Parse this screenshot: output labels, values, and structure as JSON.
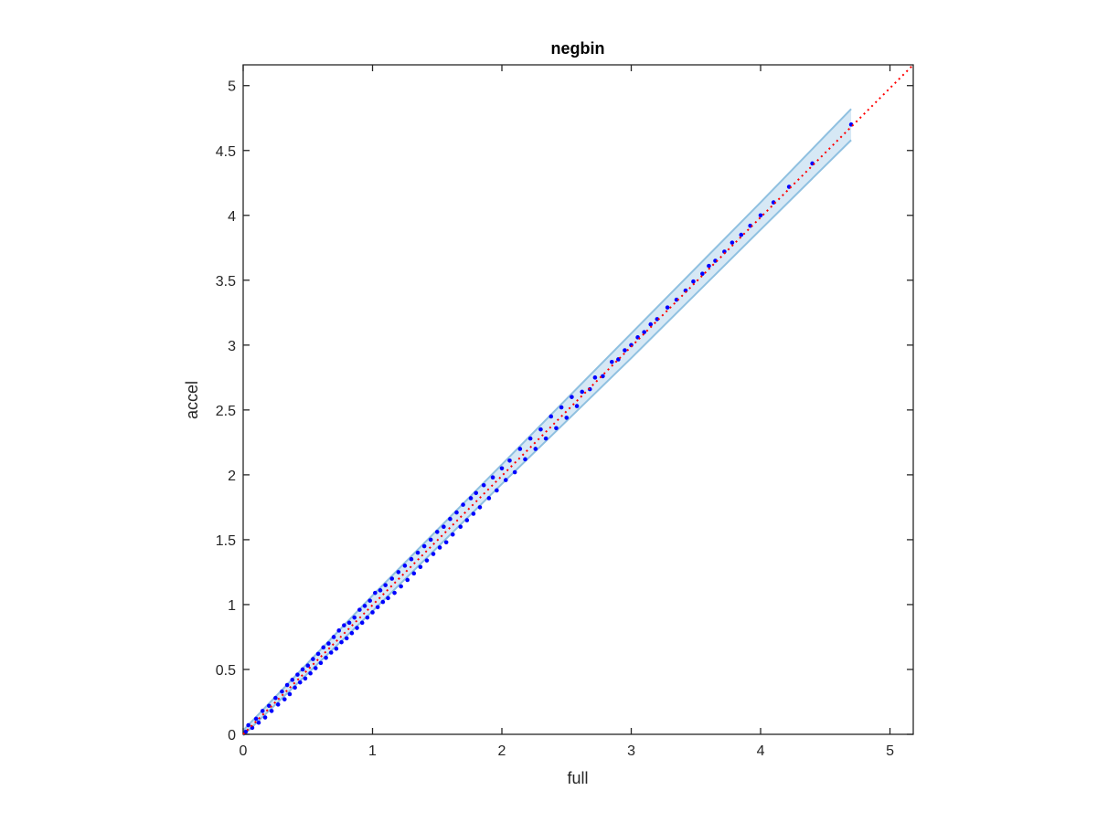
{
  "chart_data": {
    "type": "scatter",
    "title": "negbin",
    "xlabel": "full",
    "ylabel": "accel",
    "xlim": [
      0,
      5.18
    ],
    "ylim": [
      0,
      5.16
    ],
    "xticks": [
      "0",
      "1",
      "2",
      "3",
      "4",
      "5"
    ],
    "yticks": [
      "0",
      "0.5",
      "1",
      "1.5",
      "2",
      "2.5",
      "3",
      "3.5",
      "4",
      "4.5",
      "5"
    ],
    "grid": false,
    "colors": {
      "points": "#0000ff",
      "identity_line": "#ff0000",
      "band_fill": "#d6e8f5",
      "band_edge": "#8fc0e0"
    },
    "identity_line": {
      "style": "dotted",
      "from": [
        0,
        0
      ],
      "to": [
        5.18,
        5.18
      ]
    },
    "band": {
      "x": [
        0,
        1,
        2,
        3,
        4,
        4.7
      ],
      "lower": [
        -0.01,
        0.95,
        1.93,
        2.9,
        3.89,
        4.58
      ],
      "upper": [
        0.03,
        1.07,
        2.08,
        3.09,
        4.1,
        4.82
      ]
    },
    "points": [
      [
        0.02,
        0.02
      ],
      [
        0.04,
        0.07
      ],
      [
        0.07,
        0.05
      ],
      [
        0.1,
        0.12
      ],
      [
        0.12,
        0.09
      ],
      [
        0.15,
        0.18
      ],
      [
        0.17,
        0.13
      ],
      [
        0.2,
        0.22
      ],
      [
        0.22,
        0.18
      ],
      [
        0.25,
        0.28
      ],
      [
        0.27,
        0.23
      ],
      [
        0.3,
        0.33
      ],
      [
        0.32,
        0.27
      ],
      [
        0.34,
        0.38
      ],
      [
        0.36,
        0.31
      ],
      [
        0.38,
        0.42
      ],
      [
        0.4,
        0.36
      ],
      [
        0.42,
        0.46
      ],
      [
        0.44,
        0.4
      ],
      [
        0.46,
        0.5
      ],
      [
        0.48,
        0.43
      ],
      [
        0.5,
        0.53
      ],
      [
        0.52,
        0.47
      ],
      [
        0.54,
        0.58
      ],
      [
        0.56,
        0.51
      ],
      [
        0.58,
        0.62
      ],
      [
        0.6,
        0.55
      ],
      [
        0.62,
        0.67
      ],
      [
        0.64,
        0.59
      ],
      [
        0.66,
        0.7
      ],
      [
        0.68,
        0.63
      ],
      [
        0.7,
        0.75
      ],
      [
        0.72,
        0.66
      ],
      [
        0.74,
        0.8
      ],
      [
        0.76,
        0.71
      ],
      [
        0.78,
        0.84
      ],
      [
        0.8,
        0.74
      ],
      [
        0.82,
        0.86
      ],
      [
        0.84,
        0.78
      ],
      [
        0.86,
        0.9
      ],
      [
        0.88,
        0.82
      ],
      [
        0.9,
        0.96
      ],
      [
        0.92,
        0.86
      ],
      [
        0.94,
        0.99
      ],
      [
        0.96,
        0.9
      ],
      [
        0.98,
        1.03
      ],
      [
        1.0,
        0.94
      ],
      [
        1.02,
        1.09
      ],
      [
        1.04,
        0.98
      ],
      [
        1.06,
        1.11
      ],
      [
        1.08,
        1.02
      ],
      [
        1.1,
        1.15
      ],
      [
        1.12,
        1.05
      ],
      [
        1.15,
        1.2
      ],
      [
        1.17,
        1.09
      ],
      [
        1.2,
        1.25
      ],
      [
        1.22,
        1.14
      ],
      [
        1.25,
        1.3
      ],
      [
        1.27,
        1.19
      ],
      [
        1.3,
        1.35
      ],
      [
        1.32,
        1.24
      ],
      [
        1.35,
        1.4
      ],
      [
        1.37,
        1.29
      ],
      [
        1.4,
        1.45
      ],
      [
        1.42,
        1.34
      ],
      [
        1.45,
        1.5
      ],
      [
        1.47,
        1.39
      ],
      [
        1.5,
        1.56
      ],
      [
        1.52,
        1.44
      ],
      [
        1.55,
        1.6
      ],
      [
        1.57,
        1.48
      ],
      [
        1.6,
        1.66
      ],
      [
        1.62,
        1.54
      ],
      [
        1.65,
        1.71
      ],
      [
        1.68,
        1.6
      ],
      [
        1.7,
        1.77
      ],
      [
        1.73,
        1.65
      ],
      [
        1.76,
        1.82
      ],
      [
        1.78,
        1.7
      ],
      [
        1.8,
        1.86
      ],
      [
        1.83,
        1.75
      ],
      [
        1.86,
        1.92
      ],
      [
        1.9,
        1.82
      ],
      [
        1.93,
        1.98
      ],
      [
        1.96,
        1.88
      ],
      [
        2.0,
        2.05
      ],
      [
        2.03,
        1.96
      ],
      [
        2.06,
        2.11
      ],
      [
        2.1,
        2.02
      ],
      [
        2.14,
        2.2
      ],
      [
        2.18,
        2.12
      ],
      [
        2.22,
        2.28
      ],
      [
        2.26,
        2.2
      ],
      [
        2.3,
        2.35
      ],
      [
        2.34,
        2.28
      ],
      [
        2.38,
        2.45
      ],
      [
        2.42,
        2.36
      ],
      [
        2.46,
        2.52
      ],
      [
        2.5,
        2.44
      ],
      [
        2.54,
        2.6
      ],
      [
        2.58,
        2.53
      ],
      [
        2.62,
        2.64
      ],
      [
        2.68,
        2.66
      ],
      [
        2.72,
        2.75
      ],
      [
        2.78,
        2.76
      ],
      [
        2.85,
        2.87
      ],
      [
        2.9,
        2.89
      ],
      [
        2.95,
        2.96
      ],
      [
        3.0,
        3.0
      ],
      [
        3.05,
        3.06
      ],
      [
        3.1,
        3.1
      ],
      [
        3.15,
        3.16
      ],
      [
        3.2,
        3.2
      ],
      [
        3.28,
        3.29
      ],
      [
        3.35,
        3.35
      ],
      [
        3.42,
        3.42
      ],
      [
        3.48,
        3.49
      ],
      [
        3.55,
        3.55
      ],
      [
        3.6,
        3.61
      ],
      [
        3.65,
        3.65
      ],
      [
        3.72,
        3.72
      ],
      [
        3.78,
        3.79
      ],
      [
        3.85,
        3.85
      ],
      [
        3.92,
        3.92
      ],
      [
        4.0,
        4.0
      ],
      [
        4.1,
        4.1
      ],
      [
        4.22,
        4.22
      ],
      [
        4.4,
        4.4
      ],
      [
        4.7,
        4.7
      ]
    ]
  }
}
